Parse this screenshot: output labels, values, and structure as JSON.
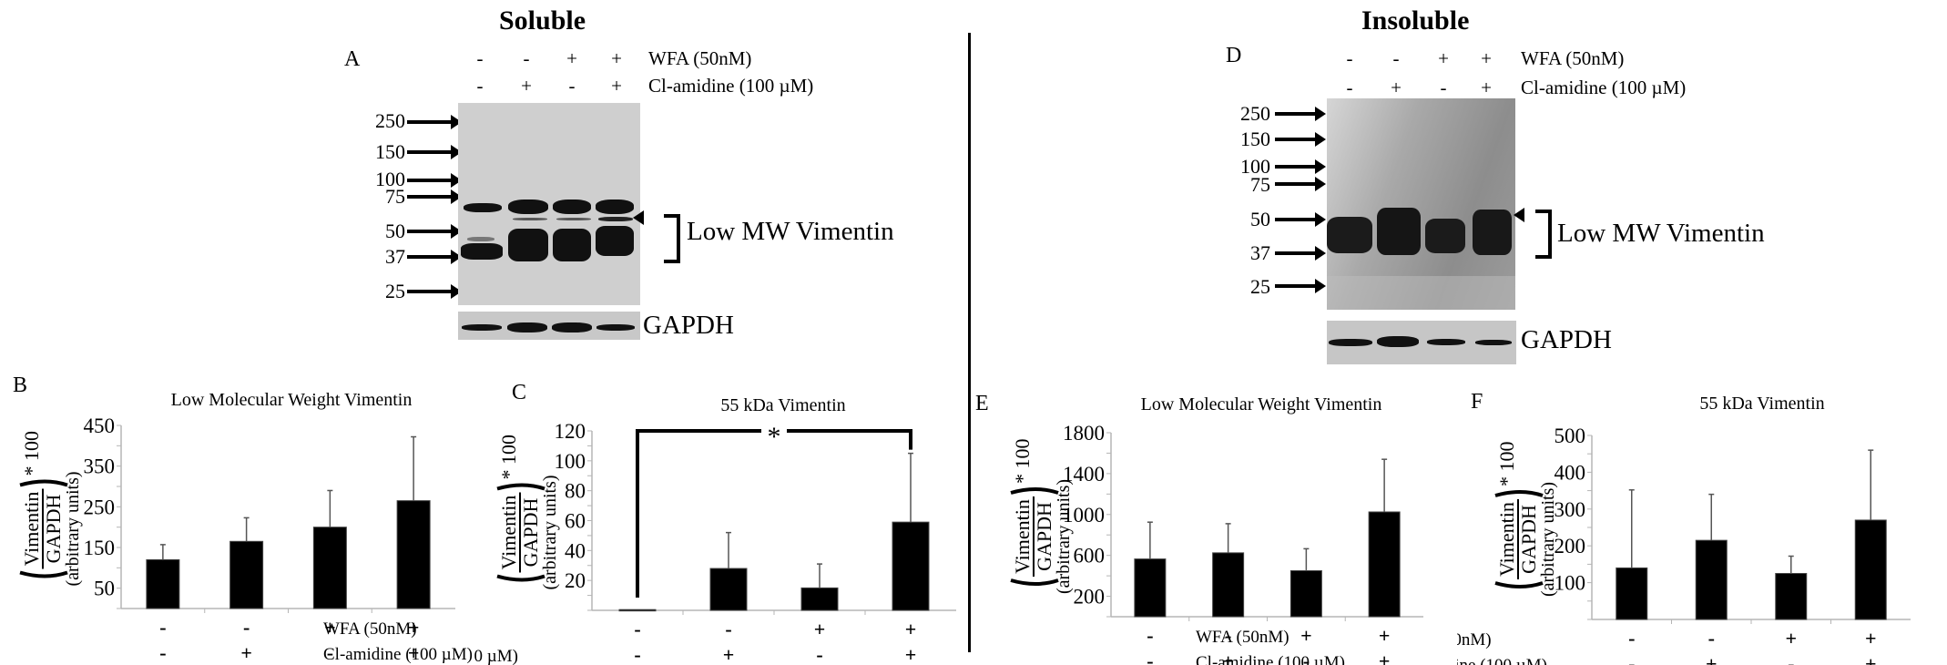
{
  "sections": {
    "soluble": {
      "title": "Soluble"
    },
    "insoluble": {
      "title": "Insoluble"
    }
  },
  "treatments": {
    "wfa_label": "WFA  (50nM)",
    "clamidine_label": "Cl-amidine (100 µM)",
    "wfa_signs": [
      "-",
      "-",
      "+",
      "+"
    ],
    "clamidine_signs": [
      "-",
      "+",
      "-",
      "+"
    ]
  },
  "blots": {
    "A": {
      "panel": "A",
      "mw_markers": [
        "250",
        "150",
        "100",
        "75",
        "50",
        "37",
        "25"
      ],
      "bracket_label": "Low MW Vimentin",
      "loading_label": "GAPDH"
    },
    "D": {
      "panel": "D",
      "mw_markers": [
        "250",
        "150",
        "100",
        "75",
        "50",
        "37",
        "25"
      ],
      "bracket_label": "Low MW Vimentin",
      "loading_label": "GAPDH"
    }
  },
  "ylabel": {
    "numerator": "Vimentin",
    "denominator": "GAPDH",
    "multiplier": "* 100",
    "units": "(arbitrary units)"
  },
  "chart_data": [
    {
      "panel": "B",
      "type": "bar",
      "title": "Low Molecular Weight Vimentin",
      "categories": [
        "WFA- / Cl-amidine-",
        "WFA- / Cl-amidine+",
        "WFA+ / Cl-amidine-",
        "WFA+ / Cl-amidine+"
      ],
      "values": [
        120,
        165,
        200,
        265
      ],
      "error_upper": [
        157,
        223,
        290,
        422
      ],
      "ylim": [
        0,
        450
      ],
      "yticks": [
        50,
        150,
        250,
        350,
        450
      ],
      "ylabel": "(Vimentin/GAPDH)*100 (arbitrary units)",
      "grid": false,
      "significance": null
    },
    {
      "panel": "C",
      "type": "bar",
      "title": "55 kDa Vimentin",
      "categories": [
        "WFA- / Cl-amidine-",
        "WFA- / Cl-amidine+",
        "WFA+ / Cl-amidine-",
        "WFA+ / Cl-amidine+"
      ],
      "values": [
        0.5,
        28,
        15,
        59
      ],
      "error_upper": [
        0.5,
        52,
        31,
        105
      ],
      "ylim": [
        0,
        120
      ],
      "yticks": [
        20,
        40,
        60,
        80,
        100,
        120
      ],
      "ylabel": "(Vimentin/GAPDH)*100 (arbitrary units)",
      "grid": false,
      "significance": {
        "from": 0,
        "to": 3,
        "label": "*"
      }
    },
    {
      "panel": "E",
      "type": "bar",
      "title": "Low Molecular Weight Vimentin",
      "categories": [
        "WFA- / Cl-amidine-",
        "WFA- / Cl-amidine+",
        "WFA+ / Cl-amidine-",
        "WFA+ / Cl-amidine+"
      ],
      "values": [
        565,
        625,
        450,
        1025
      ],
      "error_upper": [
        925,
        910,
        665,
        1540
      ],
      "ylim": [
        0,
        1800
      ],
      "yticks": [
        200,
        600,
        1000,
        1400,
        1800
      ],
      "ylabel": "(Vimentin/GAPDH)*100 (arbitrary units)",
      "grid": false,
      "significance": null
    },
    {
      "panel": "F",
      "type": "bar",
      "title": "55 kDa Vimentin",
      "categories": [
        "WFA- / Cl-amidine-",
        "WFA- / Cl-amidine+",
        "WFA+ / Cl-amidine-",
        "WFA+ / Cl-amidine+"
      ],
      "values": [
        140,
        215,
        125,
        270
      ],
      "error_upper": [
        352,
        340,
        172,
        460
      ],
      "ylim": [
        0,
        500
      ],
      "yticks": [
        100,
        200,
        300,
        400,
        500
      ],
      "ylabel": "(Vimentin/GAPDH)*100 (arbitrary units)",
      "grid": false,
      "significance": null
    }
  ]
}
